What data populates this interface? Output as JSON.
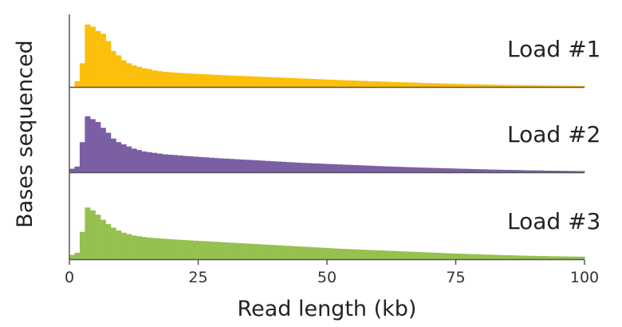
{
  "chart_data": {
    "type": "bar",
    "title": "",
    "xlabel": "Read length (kb)",
    "ylabel": "Bases sequenced",
    "xlim": [
      0,
      100
    ],
    "x_ticks": [
      "0",
      "25",
      "50",
      "75",
      "100"
    ],
    "x_tick_values": [
      0,
      25,
      50,
      75,
      100
    ],
    "y_ticks_shown": false,
    "bin_width_kb": 1,
    "x": [
      0.5,
      1.5,
      2.5,
      3.5,
      4.5,
      5.5,
      6.5,
      7.5,
      8.5,
      9.5,
      10.5,
      11.5,
      12.5,
      13.5,
      14.5,
      15.5,
      16.5,
      17.5,
      18.5,
      19.5,
      20.5,
      21.5,
      22.5,
      23.5,
      24.5,
      25.5,
      26.5,
      27.5,
      28.5,
      29.5,
      30.5,
      31.5,
      32.5,
      33.5,
      34.5,
      35.5,
      36.5,
      37.5,
      38.5,
      39.5,
      40.5,
      41.5,
      42.5,
      43.5,
      44.5,
      45.5,
      46.5,
      47.5,
      48.5,
      49.5,
      50.5,
      51.5,
      52.5,
      53.5,
      54.5,
      55.5,
      56.5,
      57.5,
      58.5,
      59.5,
      60.5,
      61.5,
      62.5,
      63.5,
      64.5,
      65.5,
      66.5,
      67.5,
      68.5,
      69.5,
      70.5,
      71.5,
      72.5,
      73.5,
      74.5,
      75.5,
      76.5,
      77.5,
      78.5,
      79.5,
      80.5,
      81.5,
      82.5,
      83.5,
      84.5,
      85.5,
      86.5,
      87.5,
      88.5,
      89.5,
      90.5,
      91.5,
      92.5,
      93.5,
      94.5,
      95.5,
      96.5,
      97.5,
      98.5,
      99.5
    ],
    "series": [
      {
        "name": "Load #1",
        "color": "#fbbf0c",
        "values": [
          0.0,
          0.08,
          0.33,
          0.87,
          0.84,
          0.78,
          0.74,
          0.64,
          0.5,
          0.44,
          0.37,
          0.33,
          0.3,
          0.28,
          0.26,
          0.25,
          0.23,
          0.22,
          0.21,
          0.205,
          0.2,
          0.195,
          0.19,
          0.187,
          0.183,
          0.18,
          0.176,
          0.172,
          0.169,
          0.165,
          0.162,
          0.159,
          0.156,
          0.153,
          0.15,
          0.147,
          0.144,
          0.141,
          0.138,
          0.135,
          0.132,
          0.129,
          0.126,
          0.123,
          0.12,
          0.117,
          0.114,
          0.111,
          0.108,
          0.105,
          0.102,
          0.099,
          0.096,
          0.093,
          0.09,
          0.088,
          0.085,
          0.083,
          0.08,
          0.078,
          0.075,
          0.073,
          0.07,
          0.068,
          0.065,
          0.063,
          0.061,
          0.059,
          0.056,
          0.054,
          0.052,
          0.05,
          0.048,
          0.046,
          0.044,
          0.042,
          0.041,
          0.039,
          0.037,
          0.036,
          0.034,
          0.033,
          0.031,
          0.03,
          0.028,
          0.027,
          0.026,
          0.025,
          0.024,
          0.023,
          0.022,
          0.021,
          0.02,
          0.019,
          0.018,
          0.017,
          0.016,
          0.016,
          0.015,
          0.014
        ]
      },
      {
        "name": "Load #2",
        "color": "#7b5fa3",
        "values": [
          0.05,
          0.08,
          0.42,
          0.78,
          0.74,
          0.7,
          0.62,
          0.55,
          0.47,
          0.42,
          0.39,
          0.36,
          0.33,
          0.31,
          0.29,
          0.28,
          0.27,
          0.26,
          0.25,
          0.245,
          0.24,
          0.234,
          0.228,
          0.223,
          0.218,
          0.213,
          0.208,
          0.203,
          0.198,
          0.194,
          0.19,
          0.186,
          0.182,
          0.178,
          0.174,
          0.17,
          0.166,
          0.162,
          0.158,
          0.154,
          0.15,
          0.146,
          0.142,
          0.138,
          0.134,
          0.13,
          0.127,
          0.124,
          0.121,
          0.118,
          0.115,
          0.112,
          0.109,
          0.106,
          0.103,
          0.1,
          0.097,
          0.094,
          0.091,
          0.088,
          0.085,
          0.082,
          0.08,
          0.077,
          0.075,
          0.072,
          0.07,
          0.068,
          0.065,
          0.063,
          0.061,
          0.059,
          0.057,
          0.055,
          0.053,
          0.051,
          0.049,
          0.047,
          0.045,
          0.043,
          0.041,
          0.039,
          0.037,
          0.036,
          0.034,
          0.033,
          0.031,
          0.03,
          0.028,
          0.027,
          0.026,
          0.025,
          0.023,
          0.022,
          0.021,
          0.02,
          0.019,
          0.018,
          0.017,
          0.017
        ]
      },
      {
        "name": "Load #3",
        "color": "#96c04f",
        "values": [
          0.06,
          0.09,
          0.38,
          0.72,
          0.68,
          0.62,
          0.55,
          0.49,
          0.44,
          0.4,
          0.37,
          0.35,
          0.33,
          0.32,
          0.31,
          0.3,
          0.295,
          0.29,
          0.285,
          0.28,
          0.275,
          0.27,
          0.266,
          0.262,
          0.258,
          0.254,
          0.25,
          0.246,
          0.242,
          0.238,
          0.234,
          0.23,
          0.226,
          0.222,
          0.218,
          0.214,
          0.21,
          0.206,
          0.202,
          0.198,
          0.194,
          0.19,
          0.186,
          0.182,
          0.178,
          0.174,
          0.17,
          0.166,
          0.162,
          0.158,
          0.154,
          0.15,
          0.146,
          0.143,
          0.14,
          0.137,
          0.134,
          0.131,
          0.128,
          0.125,
          0.122,
          0.119,
          0.116,
          0.113,
          0.11,
          0.107,
          0.104,
          0.101,
          0.098,
          0.095,
          0.092,
          0.089,
          0.086,
          0.083,
          0.08,
          0.078,
          0.075,
          0.073,
          0.07,
          0.068,
          0.065,
          0.063,
          0.061,
          0.059,
          0.057,
          0.055,
          0.053,
          0.051,
          0.049,
          0.047,
          0.046,
          0.044,
          0.043,
          0.041,
          0.04,
          0.039,
          0.038,
          0.037,
          0.036,
          0.035
        ]
      }
    ]
  }
}
